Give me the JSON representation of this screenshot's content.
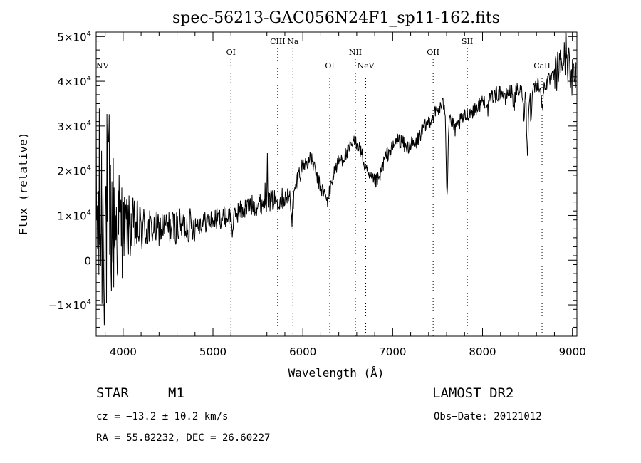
{
  "chart_data": {
    "type": "line",
    "title": "spec-56213-GAC056N24F1_sp11-162.fits",
    "xlabel": "Wavelength (Å)",
    "ylabel": "Flux (relative)",
    "xlim": [
      3700,
      9050
    ],
    "ylim": [
      -17000,
      51000
    ],
    "x_ticks": [
      4000,
      5000,
      6000,
      7000,
      8000,
      9000
    ],
    "x_tick_labels": [
      "4000",
      "5000",
      "6000",
      "7000",
      "8000",
      "9000"
    ],
    "y_ticks": [
      {
        "value": 50000,
        "mantissa": "5×10",
        "exp": "4"
      },
      {
        "value": 40000,
        "mantissa": "4×10",
        "exp": "4"
      },
      {
        "value": 30000,
        "mantissa": "3×10",
        "exp": "4"
      },
      {
        "value": 20000,
        "mantissa": "2×10",
        "exp": "4"
      },
      {
        "value": 10000,
        "mantissa": "1×10",
        "exp": "4"
      },
      {
        "value": 0,
        "mantissa": "0",
        "exp": ""
      },
      {
        "value": -10000,
        "mantissa": "−1×10",
        "exp": "4"
      }
    ],
    "lines": [
      {
        "label": "NV",
        "wavelength": 3700,
        "tier": 2,
        "marker": false
      },
      {
        "label": "OI",
        "wavelength": 5200,
        "tier": 1,
        "marker": true
      },
      {
        "label": "CIII",
        "wavelength": 5720,
        "tier": 0,
        "marker": true
      },
      {
        "label": "Na",
        "wavelength": 5890,
        "tier": 0,
        "marker": true
      },
      {
        "label": "OI",
        "wavelength": 6300,
        "tier": 2,
        "marker": true
      },
      {
        "label": "NII",
        "wavelength": 6585,
        "tier": 1,
        "marker": true
      },
      {
        "label": "NeV",
        "wavelength": 6700,
        "tier": 2,
        "marker": true
      },
      {
        "label": "OII",
        "wavelength": 7450,
        "tier": 1,
        "marker": true
      },
      {
        "label": "SII",
        "wavelength": 7830,
        "tier": 0,
        "marker": true
      },
      {
        "label": "CaII",
        "wavelength": 8662,
        "tier": 2,
        "marker": true
      }
    ],
    "series": [
      {
        "anchors": [
          [
            3700,
            9000
          ],
          [
            3800,
            9000
          ],
          [
            3900,
            8000
          ],
          [
            4000,
            7500
          ],
          [
            4200,
            7000
          ],
          [
            4400,
            7000
          ],
          [
            4600,
            7500
          ],
          [
            4800,
            8000
          ],
          [
            5000,
            9000
          ],
          [
            5100,
            9500
          ],
          [
            5200,
            10000
          ],
          [
            5300,
            11000
          ],
          [
            5400,
            12000
          ],
          [
            5500,
            12500
          ],
          [
            5600,
            13000
          ],
          [
            5700,
            13500
          ],
          [
            5800,
            14000
          ],
          [
            5900,
            14000
          ],
          [
            5950,
            19000
          ],
          [
            6000,
            21000
          ],
          [
            6050,
            22000
          ],
          [
            6100,
            22500
          ],
          [
            6150,
            19000
          ],
          [
            6200,
            16000
          ],
          [
            6250,
            15000
          ],
          [
            6300,
            15500
          ],
          [
            6350,
            20000
          ],
          [
            6400,
            22000
          ],
          [
            6450,
            23000
          ],
          [
            6500,
            24000
          ],
          [
            6550,
            26000
          ],
          [
            6600,
            26500
          ],
          [
            6650,
            24000
          ],
          [
            6700,
            20000
          ],
          [
            6750,
            18000
          ],
          [
            6800,
            17500
          ],
          [
            6850,
            18000
          ],
          [
            6900,
            22000
          ],
          [
            6950,
            24000
          ],
          [
            7000,
            25000
          ],
          [
            7050,
            27000
          ],
          [
            7100,
            26500
          ],
          [
            7150,
            25000
          ],
          [
            7200,
            26000
          ],
          [
            7250,
            25500
          ],
          [
            7300,
            28000
          ],
          [
            7400,
            31000
          ],
          [
            7500,
            33500
          ],
          [
            7550,
            34500
          ],
          [
            7600,
            35500
          ],
          [
            7650,
            31000
          ],
          [
            7700,
            29000
          ],
          [
            7750,
            31000
          ],
          [
            7800,
            32000
          ],
          [
            7850,
            33000
          ],
          [
            7900,
            33500
          ],
          [
            8000,
            35500
          ],
          [
            8100,
            36500
          ],
          [
            8200,
            37500
          ],
          [
            8300,
            37500
          ],
          [
            8400,
            38000
          ],
          [
            8450,
            37500
          ],
          [
            8500,
            38000
          ],
          [
            8600,
            39000
          ],
          [
            8700,
            39500
          ],
          [
            8800,
            41000
          ],
          [
            8850,
            43000
          ],
          [
            8900,
            45000
          ],
          [
            8950,
            44000
          ],
          [
            9000,
            42000
          ],
          [
            9050,
            43000
          ]
        ],
        "dips": [
          {
            "x": 5220,
            "depth": 3500,
            "width": 14
          },
          {
            "x": 5880,
            "depth": 4500,
            "width": 12
          },
          {
            "x": 6270,
            "depth": 2000,
            "width": 20
          },
          {
            "x": 7605,
            "depth": 20000,
            "width": 14
          },
          {
            "x": 8060,
            "depth": 2500,
            "width": 18
          },
          {
            "x": 8250,
            "depth": 2000,
            "width": 15
          },
          {
            "x": 8350,
            "depth": 3000,
            "width": 15
          },
          {
            "x": 8460,
            "depth": 5000,
            "width": 10
          },
          {
            "x": 8500,
            "depth": 14000,
            "width": 13
          },
          {
            "x": 8540,
            "depth": 8000,
            "width": 9
          },
          {
            "x": 8665,
            "depth": 6000,
            "width": 12
          },
          {
            "x": 8985,
            "depth": 4000,
            "width": 12
          }
        ],
        "spikes": [
          {
            "x": 5605,
            "height": 13000,
            "width": 5
          },
          {
            "x": 5580,
            "height": 2000,
            "width": 6
          },
          {
            "x": 8930,
            "height": 8000,
            "width": 6
          }
        ]
      }
    ]
  },
  "info": {
    "object_type": "STAR",
    "subclass": "M1",
    "survey": "LAMOST DR2",
    "redshift": "cz = −13.2 ± 10.2 km/s",
    "obs_date": "Obs−Date: 20121012",
    "coords": "RA =  55.82232, DEC =  26.60227"
  }
}
